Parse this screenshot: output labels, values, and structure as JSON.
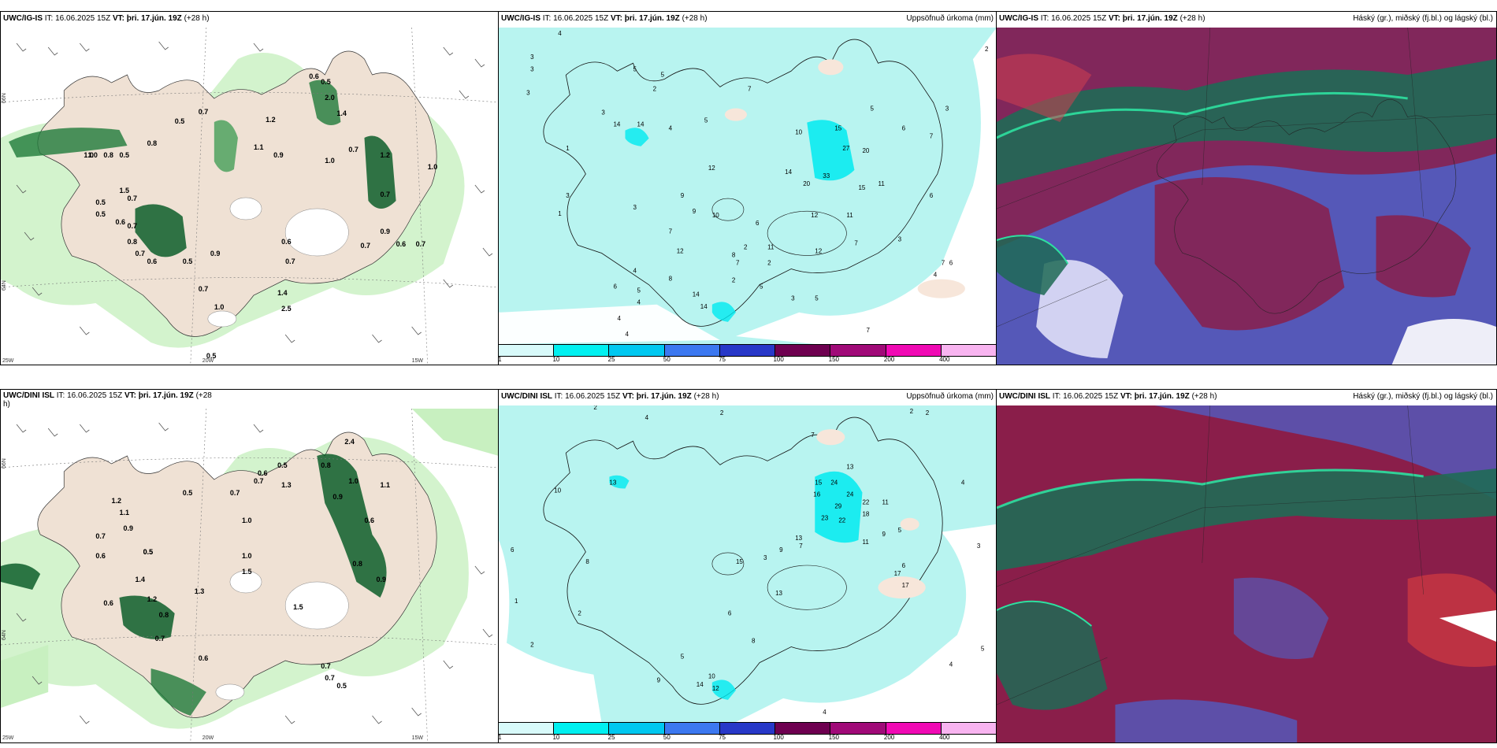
{
  "panels": {
    "p1": {
      "model": "UWC/IG-IS",
      "it_label": "IT:",
      "it": "16.06.2025 15Z",
      "vt_label": "VT:",
      "vt": "þri. 17.jún. 19Z",
      "lead": "(+28 h)",
      "right_title": ""
    },
    "p2": {
      "model": "UWC/IG-IS",
      "it_label": "IT:",
      "it": "16.06.2025 15Z",
      "vt_label": "VT:",
      "vt": "þri. 17.jún. 19Z",
      "lead": "(+28 h)",
      "right_title": "Uppsöfnuð úrkoma (mm)"
    },
    "p3": {
      "model": "UWC/IG-IS",
      "it_label": "IT:",
      "it": "16.06.2025 15Z",
      "vt_label": "VT:",
      "vt": "þri. 17.jún. 19Z",
      "lead": "(+28 h)",
      "right_title": "Háský (gr.), miðský (fj.bl.) og lágský (bl.)"
    },
    "p4": {
      "model": "UWC/DINI ISL",
      "it_label": "IT:",
      "it": "16.06.2025 15Z",
      "vt_label": "VT:",
      "vt": "þri. 17.jún. 19Z",
      "lead": "(+28",
      "lead2": "h)",
      "right_title": ""
    },
    "p5": {
      "model": "UWC/DINI ISL",
      "it_label": "IT:",
      "it": "16.06.2025 15Z",
      "vt_label": "VT:",
      "vt": "þri. 17.jún. 19Z",
      "lead": "(+28 h)",
      "right_title": "Uppsöfnuð úrkoma (mm)"
    },
    "p6": {
      "model": "UWC/DINI ISL",
      "it_label": "IT:",
      "it": "16.06.2025 15Z",
      "vt_label": "VT:",
      "vt": "þri. 17.jún. 19Z",
      "lead": "(+28 h)",
      "right_title": "Háský (gr.), miðský (fj.bl.) og lágský (bl.)"
    }
  },
  "axes": {
    "lat66": "66N",
    "lat64": "64N",
    "lon25": "25W",
    "lon20": "20W",
    "lon15": "15W",
    "lat65": "65N"
  },
  "precip_legend": {
    "ticks": [
      "1",
      "10",
      "25",
      "50",
      "75",
      "100",
      "150",
      "200",
      "400"
    ],
    "colors": [
      "#d8fafa",
      "#00f0f0",
      "#00c8f0",
      "#3c78f0",
      "#2838c8",
      "#6e0050",
      "#a00a78",
      "#f00ab4",
      "#f8b4f0"
    ]
  },
  "wind_panel_labels_top": [
    "0.6",
    "0.5",
    "1.2",
    "2.0",
    "1.4",
    "0.7",
    "0.5",
    "1.0",
    "0.8",
    "0.5",
    "0.9",
    "1.1",
    "1.0",
    "0.7",
    "0.5",
    "0.7",
    "1.2",
    "0.7",
    "1.0",
    "0.5",
    "0.7",
    "1.5",
    "0.6",
    "0.8",
    "0.7",
    "0.6",
    "0.5",
    "0.9",
    "0.7",
    "0.6",
    "0.7",
    "0.7",
    "1.0",
    "0.6",
    "0.7",
    "0.5",
    "0.9",
    "2.5",
    "1.4",
    "1.0",
    "0.8"
  ],
  "wind_panel_labels_bottom": [
    "2.4",
    "0.8",
    "1.0",
    "1.1",
    "0.5",
    "0.7",
    "0.6",
    "1.3",
    "0.5",
    "0.7",
    "0.9",
    "1.2",
    "1.0",
    "0.6",
    "1.1",
    "0.9",
    "0.7",
    "0.5",
    "0.6",
    "1.4",
    "1.2",
    "0.8",
    "0.5",
    "0.7",
    "0.6",
    "1.3",
    "1.5",
    "0.6",
    "0.7",
    "0.8",
    "1.0",
    "0.9",
    "1.5",
    "0.7",
    "0.5"
  ],
  "precip_top_labels": [
    "4",
    "3",
    "3",
    "3",
    "5",
    "5",
    "3",
    "1",
    "14",
    "14",
    "2",
    "4",
    "5",
    "7",
    "10",
    "15",
    "27",
    "20",
    "5",
    "6",
    "7",
    "3",
    "33",
    "14",
    "20",
    "15",
    "11",
    "6",
    "3",
    "3",
    "12",
    "12",
    "11",
    "10",
    "9",
    "6",
    "12",
    "11",
    "7",
    "7",
    "2",
    "1",
    "3",
    "4",
    "7",
    "2",
    "9",
    "14",
    "5",
    "8",
    "2",
    "7",
    "8",
    "5",
    "6",
    "4",
    "4",
    "3",
    "6",
    "5",
    "4",
    "7",
    "4",
    "2",
    "12",
    "14"
  ],
  "precip_bottom_labels": [
    "2",
    "2",
    "4",
    "2",
    "2",
    "7",
    "10",
    "13",
    "15",
    "24",
    "16",
    "13",
    "24",
    "29",
    "22",
    "23",
    "22",
    "18",
    "11",
    "5",
    "9",
    "6",
    "3",
    "7",
    "11",
    "13",
    "17",
    "9",
    "13",
    "15",
    "8",
    "17",
    "8",
    "10",
    "12",
    "14",
    "5",
    "6",
    "4",
    "2",
    "1",
    "6",
    "3",
    "9",
    "4",
    "2",
    "4",
    "5"
  ]
}
